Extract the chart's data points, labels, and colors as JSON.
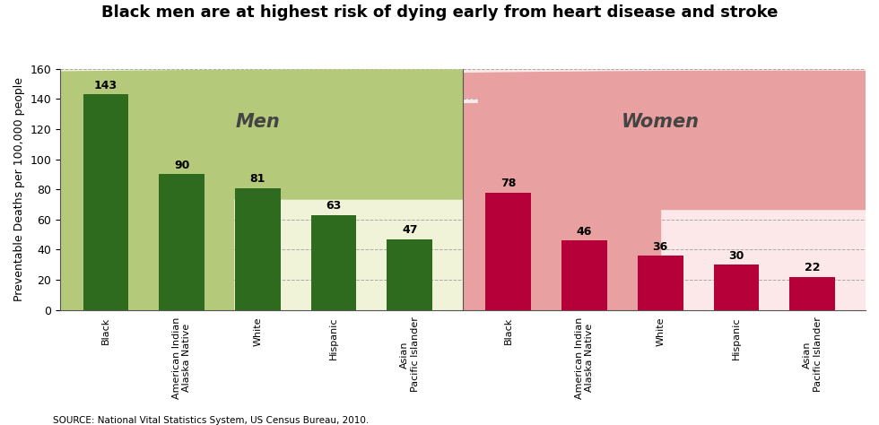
{
  "title": "Black men are at highest risk of dying early from heart disease and stroke",
  "ylabel": "Preventable Deaths per 100,000 people",
  "source": "SOURCE: National Vital Statistics System, US Census Bureau, 2010.",
  "categories": [
    "Black",
    "American Indian\nAlaska Native",
    "White",
    "Hispanic",
    "Asian\nPacific Islander"
  ],
  "men_values": [
    143,
    90,
    81,
    63,
    47
  ],
  "women_values": [
    78,
    46,
    36,
    30,
    22
  ],
  "men_bar_color": "#2e6b1e",
  "women_bar_color": "#b5003a",
  "men_bg_color": "#f0f3d8",
  "women_bg_color": "#fce8e8",
  "men_silhouette_color": "#b5c97a",
  "women_silhouette_color": "#e8a0a0",
  "men_label": "Men",
  "women_label": "Women",
  "ylim": [
    0,
    160
  ],
  "yticks": [
    0,
    20,
    40,
    60,
    80,
    100,
    120,
    140,
    160
  ],
  "title_fontsize": 13,
  "label_fontsize": 9,
  "value_fontsize": 9,
  "section_label_fontsize": 15,
  "grid_color": "#aaaaaa",
  "spine_color": "#555555"
}
